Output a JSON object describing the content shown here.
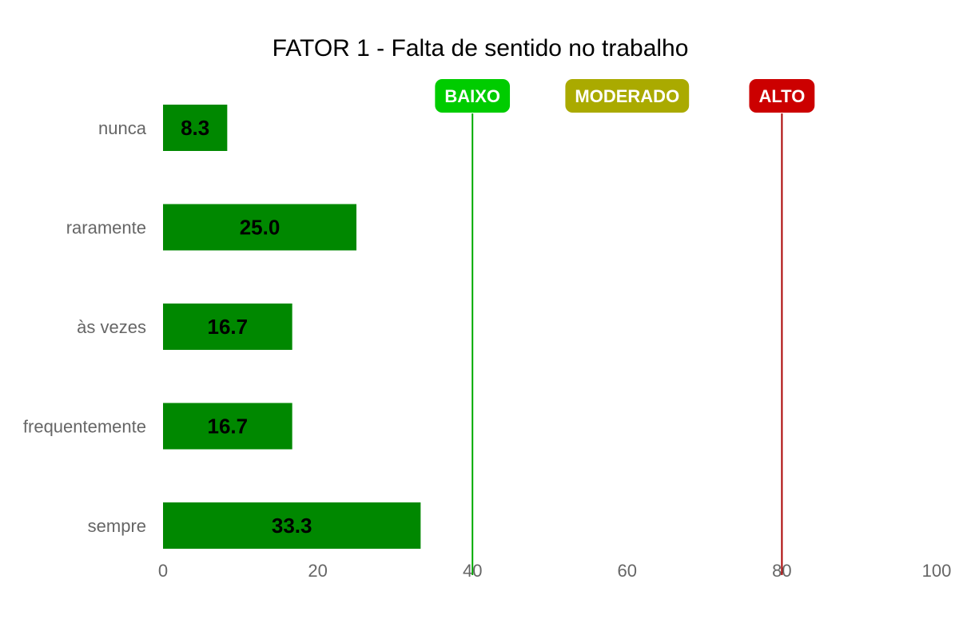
{
  "chart_data": {
    "type": "bar",
    "orientation": "horizontal",
    "title": "FATOR 1 - Falta de sentido no trabalho",
    "categories": [
      "nunca",
      "raramente",
      "às vezes",
      "frequentemente",
      "sempre"
    ],
    "values": [
      8.3,
      25.0,
      16.7,
      16.7,
      33.3
    ],
    "data_labels": [
      "8.3",
      "25.0",
      "16.7",
      "16.7",
      "33.3"
    ],
    "xlim": [
      0,
      100
    ],
    "xticks": [
      0,
      20,
      40,
      60,
      80,
      100
    ],
    "bar_color": "#008800",
    "grid": false,
    "legend": "none",
    "reference_lines": [
      {
        "value": 40,
        "color": "#00aa00"
      },
      {
        "value": 80,
        "color": "#aa0000"
      }
    ],
    "zone_badges": [
      {
        "label": "BAIXO",
        "value": 40,
        "color": "#00cc00"
      },
      {
        "label": "MODERADO",
        "value": 60,
        "color": "#aaaa00"
      },
      {
        "label": "ALTO",
        "value": 80,
        "color": "#cc0000"
      }
    ]
  }
}
